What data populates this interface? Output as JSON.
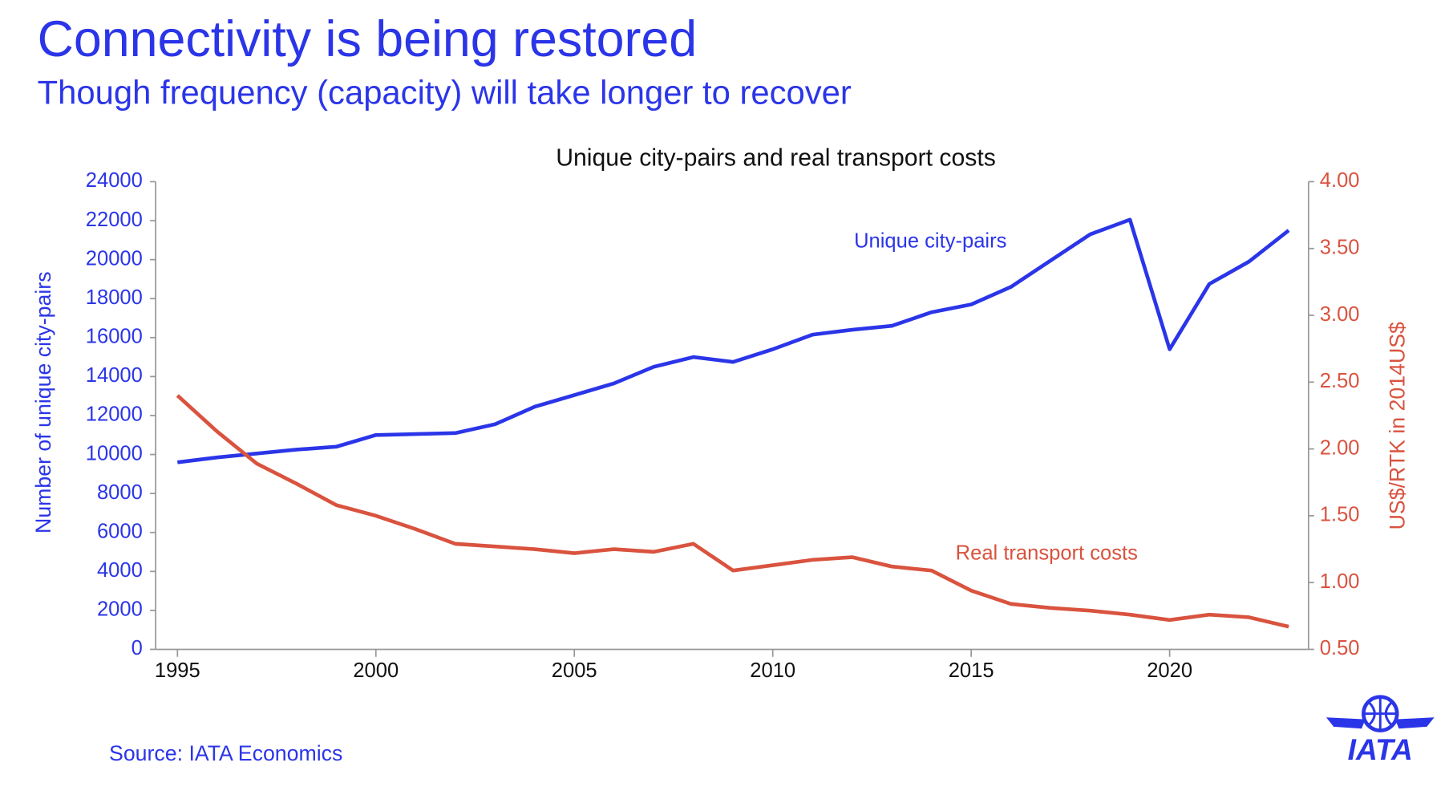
{
  "header": {
    "title": "Connectivity is being restored",
    "subtitle": "Though frequency (capacity) will take longer to recover"
  },
  "source": "Source: IATA Economics",
  "logo": "IATA",
  "chart_data": {
    "type": "line",
    "title": "Unique city-pairs and real transport costs",
    "y_label": "Number of unique city-pairs",
    "y2_label": "US$/RTK in 2014US$",
    "x": [
      1995,
      1996,
      1997,
      1998,
      1999,
      2000,
      2001,
      2002,
      2003,
      2004,
      2005,
      2006,
      2007,
      2008,
      2009,
      2010,
      2011,
      2012,
      2013,
      2014,
      2015,
      2016,
      2017,
      2018,
      2019,
      2020,
      2021,
      2022,
      2023
    ],
    "xlim": [
      1994.45,
      2023.5
    ],
    "xticks": [
      1995,
      2000,
      2005,
      2010,
      2015,
      2020
    ],
    "ylim": [
      0,
      24000
    ],
    "yticks": [
      0,
      2000,
      4000,
      6000,
      8000,
      10000,
      12000,
      14000,
      16000,
      18000,
      20000,
      22000,
      24000
    ],
    "y2lim": [
      0.5,
      4
    ],
    "y2ticks": [
      {
        "value": 0.5,
        "label": "0.50"
      },
      {
        "value": 1,
        "label": "1.00"
      },
      {
        "value": 1.5,
        "label": "1.50"
      },
      {
        "value": 2,
        "label": "2.00"
      },
      {
        "value": 2.5,
        "label": "2.50"
      },
      {
        "value": 3,
        "label": "3.00"
      },
      {
        "value": 3.5,
        "label": "3.50"
      },
      {
        "value": 4,
        "label": "4.00"
      }
    ],
    "series": [
      {
        "name": "Unique city-pairs",
        "color": "#2b35e8",
        "axis": "y",
        "values": [
          9600,
          9850,
          10050,
          10250,
          10400,
          11000,
          11050,
          11100,
          11550,
          12450,
          13050,
          13650,
          14500,
          15000,
          14750,
          15400,
          16150,
          16400,
          16600,
          17300,
          17700,
          18600,
          19950,
          21300,
          22050,
          15400,
          18750,
          19900,
          21500
        ]
      },
      {
        "name": "Real transport costs",
        "color": "#d9533f",
        "axis": "y2",
        "values": [
          2.4,
          2.13,
          1.89,
          1.74,
          1.58,
          1.5,
          1.4,
          1.29,
          1.27,
          1.25,
          1.22,
          1.25,
          1.23,
          1.29,
          1.09,
          1.13,
          1.17,
          1.19,
          1.12,
          1.09,
          0.94,
          0.84,
          0.81,
          0.79,
          0.76,
          0.72,
          0.76,
          0.74,
          0.67
        ]
      }
    ]
  }
}
